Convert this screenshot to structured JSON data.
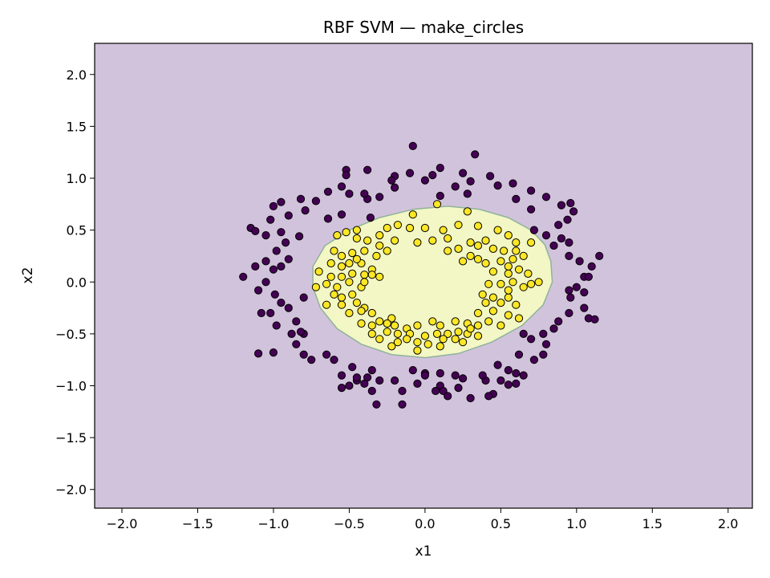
{
  "chart_data": {
    "type": "scatter",
    "title": "RBF SVM — make_circles",
    "xlabel": "x1",
    "ylabel": "x2",
    "xlim": [
      -2.18,
      2.16
    ],
    "ylim": [
      -2.18,
      2.3
    ],
    "xticks": [
      -2.0,
      -1.5,
      -1.0,
      -0.5,
      0.0,
      0.5,
      1.0,
      1.5,
      2.0
    ],
    "yticks": [
      -2.0,
      -1.5,
      -1.0,
      -0.5,
      0.0,
      0.5,
      1.0,
      1.5,
      2.0
    ],
    "xtick_labels": [
      "−2.0",
      "−1.5",
      "−1.0",
      "−0.5",
      "0.0",
      "0.5",
      "1.0",
      "1.5",
      "2.0"
    ],
    "ytick_labels": [
      "−2.0",
      "−1.5",
      "−1.0",
      "−0.5",
      "0.0",
      "0.5",
      "1.0",
      "1.5",
      "2.0"
    ],
    "grid": false,
    "colors": {
      "outer_region": "#d2c3dc",
      "inner_region": "#f3f7c5",
      "boundary": "#8fb39a",
      "outer_class": "#440154",
      "inner_class": "#fde725",
      "marker_edge": "#000000"
    },
    "decision_boundary": {
      "points": [
        [
          0.84,
          0.0
        ],
        [
          0.83,
          0.2
        ],
        [
          0.79,
          0.36
        ],
        [
          0.7,
          0.5
        ],
        [
          0.55,
          0.62
        ],
        [
          0.36,
          0.7
        ],
        [
          0.15,
          0.73
        ],
        [
          -0.08,
          0.7
        ],
        [
          -0.3,
          0.62
        ],
        [
          -0.5,
          0.5
        ],
        [
          -0.66,
          0.35
        ],
        [
          -0.74,
          0.15
        ],
        [
          -0.74,
          -0.05
        ],
        [
          -0.69,
          -0.25
        ],
        [
          -0.58,
          -0.45
        ],
        [
          -0.42,
          -0.6
        ],
        [
          -0.22,
          -0.7
        ],
        [
          0.0,
          -0.73
        ],
        [
          0.22,
          -0.69
        ],
        [
          0.44,
          -0.58
        ],
        [
          0.64,
          -0.42
        ],
        [
          0.78,
          -0.22
        ]
      ]
    },
    "series": [
      {
        "class": 0,
        "points": [
          [
            -0.08,
            1.31
          ],
          [
            0.33,
            1.23
          ],
          [
            -0.52,
            1.08
          ],
          [
            -0.38,
            1.08
          ],
          [
            0.1,
            1.1
          ],
          [
            -0.52,
            1.03
          ],
          [
            -0.2,
            1.02
          ],
          [
            -0.1,
            1.05
          ],
          [
            0.05,
            1.03
          ],
          [
            0.25,
            1.05
          ],
          [
            0.43,
            1.02
          ],
          [
            -0.22,
            0.98
          ],
          [
            0.0,
            0.98
          ],
          [
            0.3,
            0.97
          ],
          [
            0.58,
            0.95
          ],
          [
            -0.55,
            0.92
          ],
          [
            -0.64,
            0.87
          ],
          [
            -0.2,
            0.91
          ],
          [
            0.2,
            0.92
          ],
          [
            0.48,
            0.93
          ],
          [
            -0.5,
            0.85
          ],
          [
            -0.38,
            0.8
          ],
          [
            -0.3,
            0.82
          ],
          [
            0.28,
            0.85
          ],
          [
            0.7,
            0.88
          ],
          [
            0.8,
            0.82
          ],
          [
            -0.82,
            0.8
          ],
          [
            -0.72,
            0.78
          ],
          [
            -0.95,
            0.77
          ],
          [
            -1.0,
            0.73
          ],
          [
            -0.4,
            0.85
          ],
          [
            0.1,
            0.83
          ],
          [
            0.9,
            0.74
          ],
          [
            0.96,
            0.76
          ],
          [
            0.98,
            0.68
          ],
          [
            0.7,
            0.7
          ],
          [
            0.6,
            0.8
          ],
          [
            -0.79,
            0.69
          ],
          [
            -0.9,
            0.64
          ],
          [
            -1.02,
            0.6
          ],
          [
            -0.64,
            0.61
          ],
          [
            -0.55,
            0.65
          ],
          [
            -0.36,
            0.62
          ],
          [
            0.94,
            0.6
          ],
          [
            0.88,
            0.55
          ],
          [
            -1.05,
            0.45
          ],
          [
            -1.15,
            0.52
          ],
          [
            -1.12,
            0.49
          ],
          [
            -0.95,
            0.48
          ],
          [
            -0.83,
            0.44
          ],
          [
            0.72,
            0.5
          ],
          [
            0.8,
            0.45
          ],
          [
            0.9,
            0.42
          ],
          [
            0.95,
            0.38
          ],
          [
            0.85,
            0.35
          ],
          [
            -0.92,
            0.38
          ],
          [
            -0.98,
            0.3
          ],
          [
            -0.9,
            0.22
          ],
          [
            -1.05,
            0.2
          ],
          [
            -1.12,
            0.15
          ],
          [
            -1.2,
            0.05
          ],
          [
            -1.0,
            0.12
          ],
          [
            -0.95,
            0.15
          ],
          [
            0.95,
            0.25
          ],
          [
            1.02,
            0.2
          ],
          [
            1.15,
            0.25
          ],
          [
            1.1,
            0.15
          ],
          [
            1.05,
            0.05
          ],
          [
            1.08,
            0.05
          ],
          [
            1.0,
            -0.05
          ],
          [
            0.95,
            -0.08
          ],
          [
            0.96,
            -0.15
          ],
          [
            1.05,
            -0.1
          ],
          [
            -1.05,
            0.0
          ],
          [
            -1.1,
            -0.08
          ],
          [
            -0.99,
            -0.12
          ],
          [
            -0.95,
            -0.2
          ],
          [
            -0.8,
            -0.15
          ],
          [
            -0.9,
            -0.25
          ],
          [
            -1.08,
            -0.3
          ],
          [
            -1.02,
            -0.3
          ],
          [
            1.08,
            -0.35
          ],
          [
            1.12,
            -0.36
          ],
          [
            1.05,
            -0.25
          ],
          [
            0.95,
            -0.3
          ],
          [
            0.88,
            -0.38
          ],
          [
            -0.98,
            -0.42
          ],
          [
            -0.85,
            -0.38
          ],
          [
            -0.8,
            -0.5
          ],
          [
            -0.88,
            -0.5
          ],
          [
            -0.82,
            -0.48
          ],
          [
            0.85,
            -0.45
          ],
          [
            0.78,
            -0.5
          ],
          [
            0.65,
            -0.5
          ],
          [
            0.7,
            -0.55
          ],
          [
            -0.85,
            -0.6
          ],
          [
            -1.0,
            -0.68
          ],
          [
            -1.1,
            -0.69
          ],
          [
            -0.8,
            -0.7
          ],
          [
            -0.75,
            -0.75
          ],
          [
            -0.65,
            -0.7
          ],
          [
            0.8,
            -0.6
          ],
          [
            0.78,
            -0.7
          ],
          [
            0.72,
            -0.75
          ],
          [
            0.62,
            -0.7
          ],
          [
            -0.6,
            -0.75
          ],
          [
            -0.55,
            -0.9
          ],
          [
            -0.45,
            -0.95
          ],
          [
            -0.48,
            -0.82
          ],
          [
            -0.35,
            -0.85
          ],
          [
            0.48,
            -0.8
          ],
          [
            0.55,
            -0.85
          ],
          [
            0.6,
            -0.88
          ],
          [
            0.65,
            -0.9
          ],
          [
            -0.5,
            -1.0
          ],
          [
            -0.55,
            -1.02
          ],
          [
            -0.38,
            -0.92
          ],
          [
            -0.3,
            -0.95
          ],
          [
            -0.2,
            -0.95
          ],
          [
            -0.05,
            -0.98
          ],
          [
            0.1,
            -1.0
          ],
          [
            0.22,
            -1.02
          ],
          [
            0.25,
            -0.93
          ],
          [
            0.4,
            -0.95
          ],
          [
            0.38,
            -0.9
          ],
          [
            -0.35,
            -1.05
          ],
          [
            -0.15,
            -1.05
          ],
          [
            0.07,
            -1.05
          ],
          [
            0.12,
            -1.05
          ],
          [
            0.3,
            -1.12
          ],
          [
            0.45,
            -1.08
          ],
          [
            0.42,
            -1.1
          ],
          [
            -0.32,
            -1.18
          ],
          [
            -0.15,
            -1.18
          ],
          [
            0.0,
            -0.88
          ],
          [
            0.2,
            -0.9
          ],
          [
            -0.08,
            -0.85
          ],
          [
            -0.4,
            -0.98
          ],
          [
            0.5,
            -0.95
          ],
          [
            0.15,
            -1.1
          ],
          [
            0.55,
            -0.99
          ],
          [
            0.6,
            -0.98
          ],
          [
            -0.45,
            -0.92
          ],
          [
            0.0,
            -0.9
          ],
          [
            0.1,
            -0.88
          ]
        ]
      },
      {
        "class": 1,
        "points": [
          [
            0.08,
            0.75
          ],
          [
            -0.08,
            0.65
          ],
          [
            0.28,
            0.68
          ],
          [
            -0.18,
            0.55
          ],
          [
            -0.25,
            0.52
          ],
          [
            -0.1,
            0.52
          ],
          [
            0.0,
            0.52
          ],
          [
            0.12,
            0.5
          ],
          [
            0.22,
            0.55
          ],
          [
            0.35,
            0.54
          ],
          [
            -0.45,
            0.5
          ],
          [
            -0.52,
            0.48
          ],
          [
            -0.58,
            0.45
          ],
          [
            0.48,
            0.5
          ],
          [
            0.55,
            0.45
          ],
          [
            -0.45,
            0.42
          ],
          [
            -0.38,
            0.4
          ],
          [
            -0.3,
            0.45
          ],
          [
            -0.2,
            0.4
          ],
          [
            -0.05,
            0.38
          ],
          [
            0.05,
            0.4
          ],
          [
            0.15,
            0.42
          ],
          [
            0.3,
            0.38
          ],
          [
            0.4,
            0.4
          ],
          [
            0.6,
            0.38
          ],
          [
            0.7,
            0.38
          ],
          [
            -0.6,
            0.3
          ],
          [
            -0.55,
            0.25
          ],
          [
            -0.48,
            0.28
          ],
          [
            -0.4,
            0.3
          ],
          [
            -0.32,
            0.25
          ],
          [
            -0.25,
            0.3
          ],
          [
            0.22,
            0.32
          ],
          [
            0.3,
            0.25
          ],
          [
            0.45,
            0.32
          ],
          [
            0.52,
            0.3
          ],
          [
            0.58,
            0.22
          ],
          [
            0.65,
            0.25
          ],
          [
            -0.62,
            0.18
          ],
          [
            -0.55,
            0.15
          ],
          [
            -0.5,
            0.18
          ],
          [
            -0.42,
            0.18
          ],
          [
            -0.35,
            0.12
          ],
          [
            0.25,
            0.2
          ],
          [
            0.35,
            0.22
          ],
          [
            0.4,
            0.18
          ],
          [
            0.5,
            0.2
          ],
          [
            0.55,
            0.15
          ],
          [
            -0.7,
            0.1
          ],
          [
            -0.62,
            0.05
          ],
          [
            -0.55,
            0.05
          ],
          [
            -0.48,
            0.08
          ],
          [
            -0.4,
            0.07
          ],
          [
            -0.35,
            0.07
          ],
          [
            -0.3,
            0.05
          ],
          [
            0.45,
            0.1
          ],
          [
            0.55,
            0.08
          ],
          [
            0.62,
            0.12
          ],
          [
            0.68,
            0.08
          ],
          [
            0.75,
            0.0
          ],
          [
            -0.72,
            -0.05
          ],
          [
            -0.65,
            -0.02
          ],
          [
            -0.58,
            -0.05
          ],
          [
            -0.5,
            0.0
          ],
          [
            -0.42,
            -0.05
          ],
          [
            0.42,
            -0.02
          ],
          [
            0.5,
            -0.02
          ],
          [
            0.58,
            0.0
          ],
          [
            0.65,
            -0.05
          ],
          [
            0.7,
            -0.02
          ],
          [
            -0.6,
            -0.12
          ],
          [
            -0.55,
            -0.15
          ],
          [
            -0.48,
            -0.12
          ],
          [
            0.38,
            -0.12
          ],
          [
            0.45,
            -0.15
          ],
          [
            0.55,
            -0.15
          ],
          [
            -0.65,
            -0.22
          ],
          [
            -0.55,
            -0.22
          ],
          [
            -0.45,
            -0.2
          ],
          [
            -0.4,
            -0.25
          ],
          [
            0.4,
            -0.2
          ],
          [
            0.5,
            -0.2
          ],
          [
            0.6,
            -0.22
          ],
          [
            -0.5,
            -0.3
          ],
          [
            -0.42,
            -0.28
          ],
          [
            -0.35,
            -0.3
          ],
          [
            0.35,
            -0.3
          ],
          [
            0.45,
            -0.28
          ],
          [
            0.55,
            -0.32
          ],
          [
            0.62,
            -0.35
          ],
          [
            -0.42,
            -0.4
          ],
          [
            -0.35,
            -0.42
          ],
          [
            -0.3,
            -0.38
          ],
          [
            -0.22,
            -0.35
          ],
          [
            -0.2,
            -0.42
          ],
          [
            -0.12,
            -0.45
          ],
          [
            -0.05,
            -0.42
          ],
          [
            0.05,
            -0.38
          ],
          [
            0.1,
            -0.42
          ],
          [
            0.2,
            -0.38
          ],
          [
            0.28,
            -0.4
          ],
          [
            0.35,
            -0.42
          ],
          [
            0.42,
            -0.38
          ],
          [
            0.5,
            -0.42
          ],
          [
            -0.35,
            -0.5
          ],
          [
            -0.3,
            -0.55
          ],
          [
            -0.25,
            -0.48
          ],
          [
            -0.18,
            -0.5
          ],
          [
            -0.1,
            -0.5
          ],
          [
            0.0,
            -0.52
          ],
          [
            0.08,
            -0.5
          ],
          [
            0.15,
            -0.5
          ],
          [
            0.22,
            -0.48
          ],
          [
            0.28,
            -0.5
          ],
          [
            0.35,
            -0.52
          ],
          [
            -0.22,
            -0.62
          ],
          [
            -0.18,
            -0.58
          ],
          [
            -0.05,
            -0.58
          ],
          [
            0.02,
            -0.6
          ],
          [
            0.12,
            -0.55
          ],
          [
            0.2,
            -0.55
          ],
          [
            0.25,
            -0.58
          ],
          [
            -0.05,
            -0.66
          ],
          [
            0.1,
            -0.62
          ],
          [
            -0.12,
            -0.55
          ],
          [
            -0.25,
            -0.4
          ],
          [
            0.3,
            -0.45
          ],
          [
            -0.4,
            0.0
          ],
          [
            0.55,
            -0.08
          ],
          [
            -0.3,
            0.35
          ],
          [
            0.35,
            0.35
          ],
          [
            0.15,
            0.3
          ],
          [
            -0.45,
            0.22
          ],
          [
            0.6,
            0.3
          ]
        ]
      }
    ]
  }
}
